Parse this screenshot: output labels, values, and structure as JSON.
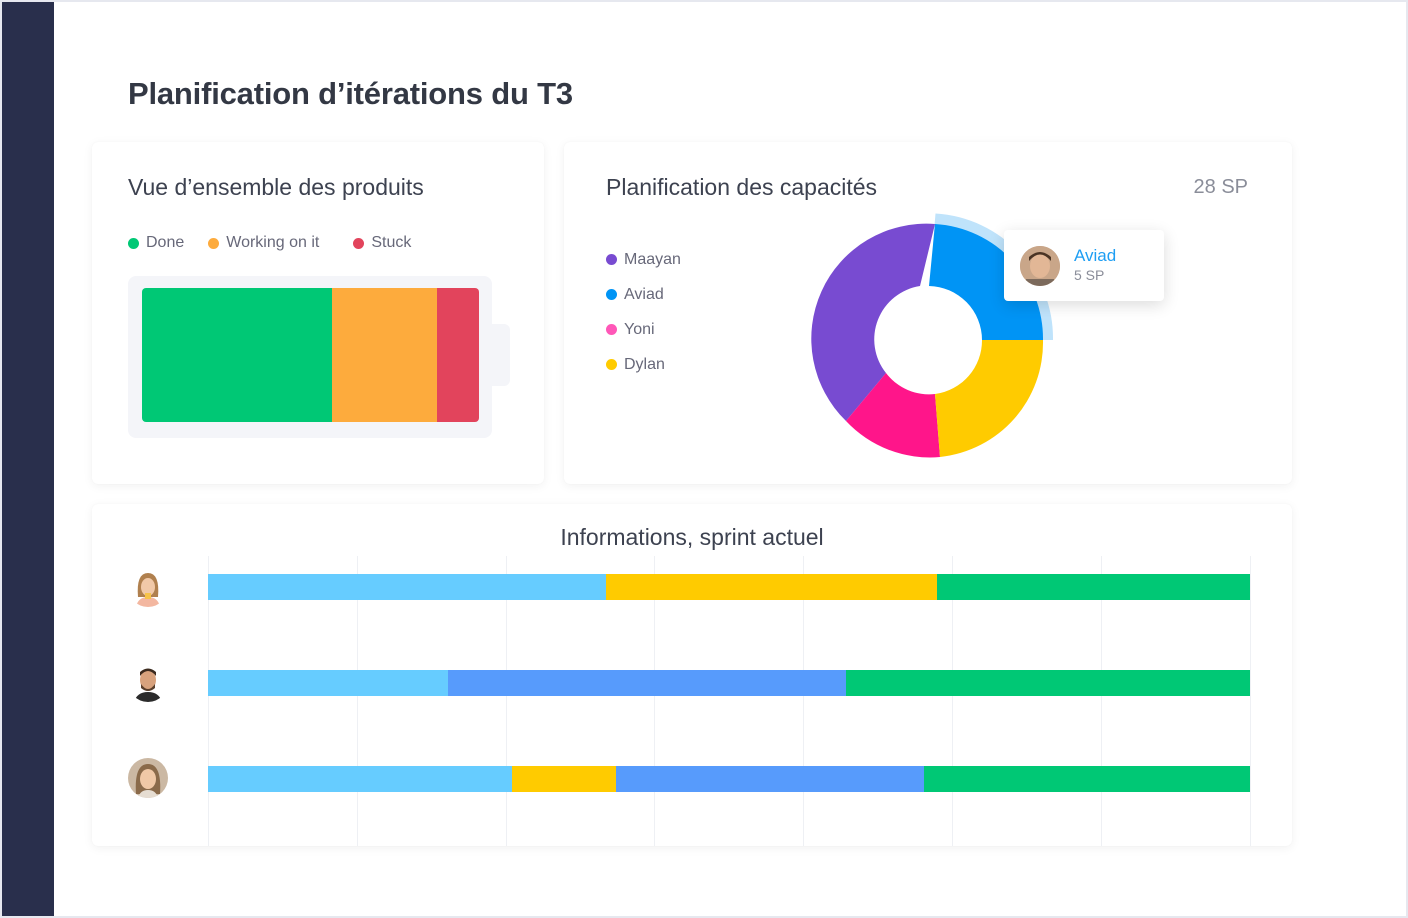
{
  "page": {
    "title": "Planification d’itérations du T3"
  },
  "products": {
    "title": "Vue d’ensemble des produits",
    "legend": [
      {
        "label": "Done",
        "color": "#00c875"
      },
      {
        "label": "Working on it",
        "color": "#fdab3d"
      },
      {
        "label": "Stuck",
        "color": "#e2445c"
      }
    ],
    "battery_fractions": [
      0.565,
      0.31,
      0.125
    ]
  },
  "capacity": {
    "title": "Planification des capacités",
    "total": "28 SP",
    "legend": [
      {
        "label": "Maayan",
        "color": "#784bd1"
      },
      {
        "label": "Aviad",
        "color": "#0094f5"
      },
      {
        "label": "Yoni",
        "color": "#ff158a"
      },
      {
        "label": "Dylan",
        "color": "#ffcb00"
      }
    ],
    "tooltip": {
      "name": "Aviad",
      "value": "5 SP"
    }
  },
  "sprint": {
    "title": "Informations, sprint actuel",
    "rows": [
      {
        "avatar_icon": "woman-avatar-icon",
        "segments": [
          {
            "color": "#66ccff",
            "fraction": 0.382
          },
          {
            "color": "#ffcb00",
            "fraction": 0.318
          },
          {
            "color": "#00c875",
            "fraction": 0.3
          }
        ]
      },
      {
        "avatar_icon": "man-avatar-icon",
        "segments": [
          {
            "color": "#66ccff",
            "fraction": 0.23
          },
          {
            "color": "#579bfc",
            "fraction": 0.382
          },
          {
            "color": "#00c875",
            "fraction": 0.388
          }
        ]
      },
      {
        "avatar_icon": "woman-avatar-icon",
        "segments": [
          {
            "color": "#66ccff",
            "fraction": 0.292
          },
          {
            "color": "#ffcb00",
            "fraction": 0.1
          },
          {
            "color": "#579bfc",
            "fraction": 0.295
          },
          {
            "color": "#00c875",
            "fraction": 0.313
          }
        ]
      }
    ]
  }
}
